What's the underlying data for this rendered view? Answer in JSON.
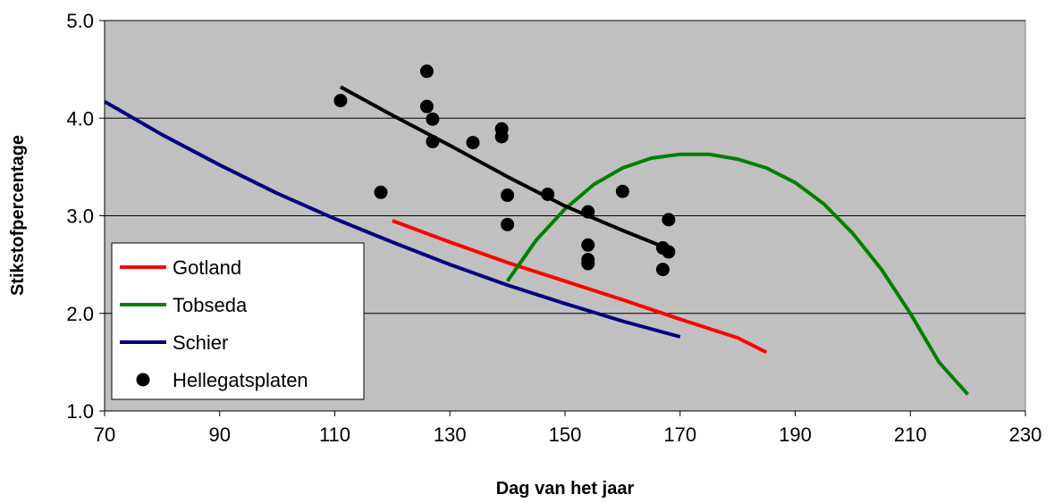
{
  "chart_data": {
    "type": "scatter",
    "xlabel": "Dag van het jaar",
    "ylabel": "Stikstofpercentage",
    "xlim": [
      70,
      230
    ],
    "ylim": [
      1.0,
      5.0
    ],
    "x_ticks": [
      "70",
      "90",
      "110",
      "130",
      "150",
      "170",
      "190",
      "210",
      "230"
    ],
    "y_ticks": [
      "1.0",
      "2.0",
      "3.0",
      "4.0",
      "5.0"
    ],
    "grid": "horizontal",
    "plot_background": "#c0c0c0",
    "legend_position": "bottom-left",
    "series": [
      {
        "name": "Gotland",
        "kind": "line",
        "color": "#ff0000",
        "points": [
          [
            120,
            2.95
          ],
          [
            130,
            2.73
          ],
          [
            140,
            2.52
          ],
          [
            150,
            2.33
          ],
          [
            160,
            2.14
          ],
          [
            170,
            1.94
          ],
          [
            180,
            1.75
          ],
          [
            185,
            1.6
          ]
        ]
      },
      {
        "name": "Tobseda",
        "kind": "line",
        "color": "#008000",
        "points": [
          [
            140,
            2.33
          ],
          [
            145,
            2.75
          ],
          [
            150,
            3.07
          ],
          [
            155,
            3.32
          ],
          [
            160,
            3.49
          ],
          [
            165,
            3.59
          ],
          [
            170,
            3.63
          ],
          [
            175,
            3.63
          ],
          [
            180,
            3.58
          ],
          [
            185,
            3.49
          ],
          [
            190,
            3.34
          ],
          [
            195,
            3.12
          ],
          [
            200,
            2.82
          ],
          [
            205,
            2.45
          ],
          [
            210,
            2.0
          ],
          [
            215,
            1.5
          ],
          [
            220,
            1.17
          ]
        ]
      },
      {
        "name": "Schier",
        "kind": "line",
        "color": "#000080",
        "points": [
          [
            70,
            4.17
          ],
          [
            80,
            3.83
          ],
          [
            90,
            3.52
          ],
          [
            100,
            3.23
          ],
          [
            110,
            2.97
          ],
          [
            120,
            2.73
          ],
          [
            130,
            2.5
          ],
          [
            140,
            2.29
          ],
          [
            150,
            2.1
          ],
          [
            160,
            1.92
          ],
          [
            170,
            1.76
          ]
        ]
      },
      {
        "name": "Hellegatsplaten",
        "kind": "scatter",
        "color": "#000000",
        "points": [
          [
            111,
            4.18
          ],
          [
            118,
            3.24
          ],
          [
            126,
            4.48
          ],
          [
            126,
            4.12
          ],
          [
            127,
            3.99
          ],
          [
            127,
            3.76
          ],
          [
            134,
            3.75
          ],
          [
            139,
            3.89
          ],
          [
            139,
            3.81
          ],
          [
            140,
            3.21
          ],
          [
            140,
            2.91
          ],
          [
            147,
            3.22
          ],
          [
            154,
            3.04
          ],
          [
            154,
            2.7
          ],
          [
            154,
            2.55
          ],
          [
            154,
            2.51
          ],
          [
            160,
            3.25
          ],
          [
            167,
            2.67
          ],
          [
            167,
            2.45
          ],
          [
            168,
            2.96
          ],
          [
            168,
            2.63
          ]
        ]
      },
      {
        "kind": "line",
        "color": "#000000",
        "points": [
          [
            111,
            4.32
          ],
          [
            120,
            4.03
          ],
          [
            130,
            3.72
          ],
          [
            140,
            3.4
          ],
          [
            150,
            3.1
          ],
          [
            160,
            2.85
          ],
          [
            168,
            2.66
          ]
        ]
      }
    ]
  }
}
